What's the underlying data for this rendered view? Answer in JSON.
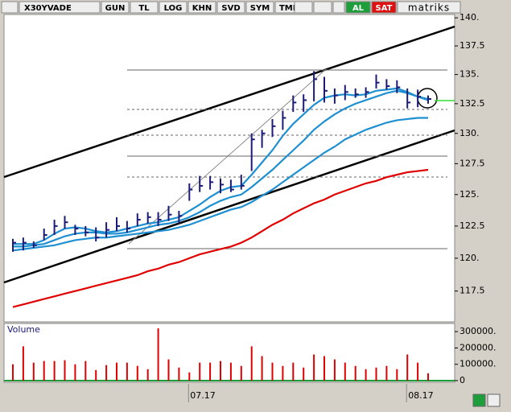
{
  "toolbar": {
    "symbol": "X30YVADE",
    "buttons": [
      "GUN",
      "TL",
      "LOG",
      "KHN",
      "SVD",
      "SYM",
      "TMP"
    ],
    "buy": "AL",
    "sell": "SAT",
    "brand": "matriks"
  },
  "chart_data": [
    {
      "type": "ohlc",
      "log": true,
      "color": "#1c1c78",
      "high": [
        121.5,
        121.6,
        121.3,
        122.3,
        123.0,
        123.3,
        122.6,
        122.5,
        122.4,
        122.8,
        123.2,
        122.9,
        123.5,
        123.6,
        123.6,
        124.1,
        123.7,
        125.9,
        126.5,
        126.5,
        126.3,
        126.2,
        126.6,
        130.0,
        130.3,
        131.2,
        131.9,
        133.2,
        133.3,
        135.3,
        134.8,
        133.8,
        134.1,
        133.8,
        133.9,
        135.0,
        134.6,
        134.5,
        133.8,
        133.7,
        133.2
      ],
      "low": [
        120.5,
        120.6,
        120.8,
        121.4,
        121.8,
        122.3,
        121.8,
        121.7,
        121.3,
        121.6,
        122.1,
        122.0,
        122.5,
        122.7,
        122.5,
        122.9,
        122.7,
        124.5,
        125.2,
        125.4,
        125.1,
        125.2,
        125.4,
        126.9,
        128.8,
        129.7,
        130.3,
        131.8,
        131.8,
        132.7,
        132.6,
        132.5,
        132.8,
        133.0,
        133.0,
        133.8,
        133.7,
        133.4,
        132.1,
        132.2,
        132.5
      ],
      "close": [
        121.2,
        121.2,
        121.0,
        121.8,
        122.5,
        122.8,
        122.3,
        122.0,
        121.6,
        122.2,
        122.5,
        122.3,
        123.0,
        123.2,
        123.0,
        123.4,
        123.3,
        125.4,
        125.7,
        126.0,
        125.8,
        125.4,
        125.7,
        129.5,
        130.0,
        130.6,
        131.3,
        132.6,
        132.8,
        134.6,
        133.6,
        133.2,
        133.5,
        133.3,
        133.5,
        134.3,
        134.0,
        133.9,
        132.6,
        133.1,
        132.9
      ],
      "overlays": [
        {
          "color": "#1e8fd0",
          "values": [
            121.1,
            121.1,
            121.1,
            121.4,
            121.9,
            122.3,
            122.4,
            122.3,
            122.1,
            122.0,
            122.1,
            122.3,
            122.5,
            122.7,
            122.8,
            123.0,
            123.2,
            123.7,
            124.2,
            124.8,
            125.3,
            125.6,
            125.7,
            126.6,
            127.6,
            128.6,
            129.8,
            130.8,
            131.6,
            132.4,
            133.0,
            133.2,
            133.3,
            133.2,
            133.3,
            133.6,
            133.7,
            133.8,
            133.5,
            133.1,
            132.8
          ]
        },
        {
          "color": "#1e8fd0",
          "values": [
            120.9,
            120.9,
            121.0,
            121.1,
            121.4,
            121.7,
            121.9,
            122.0,
            122.0,
            121.9,
            121.9,
            122.0,
            122.2,
            122.4,
            122.6,
            122.7,
            122.9,
            123.2,
            123.6,
            124.1,
            124.5,
            124.8,
            125.0,
            125.6,
            126.3,
            127.0,
            127.8,
            128.6,
            129.4,
            130.3,
            131.0,
            131.6,
            132.1,
            132.5,
            132.8,
            133.1,
            133.4,
            133.6,
            133.4,
            133.1,
            132.9
          ]
        },
        {
          "color": "#1e8fd0",
          "values": [
            120.6,
            120.7,
            120.8,
            120.9,
            121.0,
            121.2,
            121.4,
            121.5,
            121.6,
            121.6,
            121.7,
            121.8,
            121.9,
            122.0,
            122.1,
            122.2,
            122.4,
            122.6,
            122.9,
            123.2,
            123.5,
            123.8,
            124.0,
            124.4,
            124.9,
            125.4,
            126.0,
            126.6,
            127.2,
            127.8,
            128.4,
            128.9,
            129.5,
            129.9,
            130.3,
            130.6,
            130.9,
            131.1,
            131.2,
            131.3,
            131.3
          ]
        },
        {
          "color": "#e00000",
          "values": [
            116.3,
            116.5,
            116.7,
            116.9,
            117.1,
            117.3,
            117.5,
            117.7,
            117.9,
            118.1,
            118.3,
            118.5,
            118.7,
            119.0,
            119.2,
            119.5,
            119.7,
            120.0,
            120.3,
            120.5,
            120.7,
            120.9,
            121.2,
            121.6,
            122.1,
            122.6,
            123.0,
            123.5,
            123.9,
            124.3,
            124.6,
            125.0,
            125.3,
            125.6,
            125.9,
            126.1,
            126.4,
            126.6,
            126.8,
            126.9,
            127.0
          ]
        }
      ],
      "ylim": [
        115.2,
        140.3
      ],
      "yticks": [
        {
          "value": 140,
          "label": "140."
        },
        137.5,
        {
          "value": 135,
          "label": "135."
        },
        132.5,
        {
          "value": 130,
          "label": "130."
        },
        127.5,
        {
          "value": 125,
          "label": "125."
        },
        122.5,
        {
          "value": 120,
          "label": "120."
        },
        117.5
      ]
    },
    {
      "type": "bar",
      "title": "Volume",
      "color": "#e00000",
      "categories": [
        null,
        null,
        null,
        null,
        null,
        null,
        null,
        null,
        null,
        null,
        null,
        null,
        null,
        null,
        null,
        null,
        null,
        "07.17",
        null,
        null,
        null,
        null,
        null,
        null,
        null,
        null,
        null,
        null,
        null,
        null,
        null,
        null,
        null,
        null,
        null,
        null,
        null,
        null,
        "08.17",
        null,
        null
      ],
      "values": [
        100000,
        210000,
        110000,
        120000,
        120000,
        125000,
        100000,
        120000,
        65000,
        95000,
        110000,
        110000,
        90000,
        70000,
        320000,
        130000,
        80000,
        50000,
        110000,
        110000,
        120000,
        110000,
        90000,
        210000,
        150000,
        110000,
        90000,
        110000,
        80000,
        160000,
        150000,
        130000,
        110000,
        90000,
        70000,
        80000,
        90000,
        70000,
        160000,
        110000,
        45000
      ],
      "ylim": [
        0,
        335000
      ],
      "yticks": [
        0,
        {
          "value": 100000,
          "label": "100000."
        },
        {
          "value": 200000,
          "label": "200000."
        },
        {
          "value": 300000,
          "label": "300000."
        }
      ]
    }
  ]
}
